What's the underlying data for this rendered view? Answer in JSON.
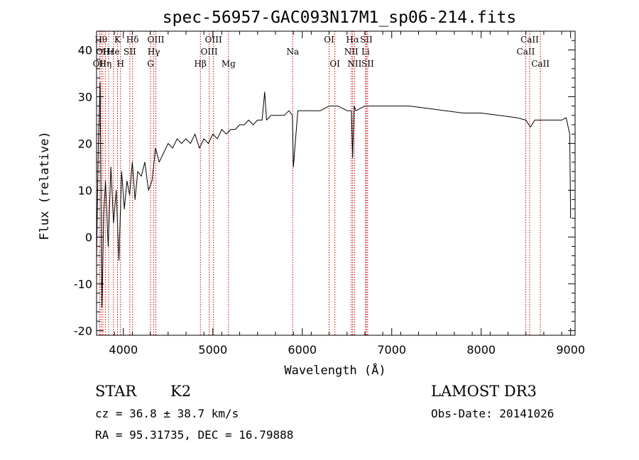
{
  "chart_data": {
    "type": "line",
    "title": "spec-56957-GAC093N17M1_sp06-214.fits",
    "xlabel": "Wavelength (Å)",
    "ylabel": "Flux (relative)",
    "xlim": [
      3700,
      9050
    ],
    "ylim": [
      -21,
      44
    ],
    "xticks": [
      4000,
      5000,
      6000,
      7000,
      8000,
      9000
    ],
    "yticks": [
      -20,
      -10,
      0,
      10,
      20,
      30,
      40
    ],
    "series": [
      {
        "name": "spectrum",
        "x": [
          3700,
          3720,
          3740,
          3760,
          3780,
          3800,
          3830,
          3860,
          3890,
          3920,
          3950,
          3980,
          4010,
          4040,
          4070,
          4100,
          4130,
          4160,
          4200,
          4240,
          4280,
          4320,
          4360,
          4400,
          4450,
          4500,
          4550,
          4600,
          4650,
          4700,
          4750,
          4800,
          4850,
          4900,
          4950,
          5000,
          5050,
          5100,
          5150,
          5200,
          5250,
          5300,
          5350,
          5400,
          5450,
          5500,
          5550,
          5580,
          5600,
          5650,
          5700,
          5750,
          5800,
          5850,
          5890,
          5900,
          5950,
          6000,
          6100,
          6200,
          6300,
          6400,
          6500,
          6550,
          6563,
          6580,
          6600,
          6700,
          6800,
          6900,
          7000,
          7200,
          7400,
          7600,
          7800,
          8000,
          8200,
          8400,
          8500,
          8550,
          8600,
          8700,
          8800,
          8900,
          8950,
          8990,
          9000
        ],
        "y": [
          -5,
          20,
          33,
          -15,
          5,
          12,
          -2,
          15,
          3,
          10,
          -5,
          14,
          6,
          12,
          9,
          16,
          8,
          14,
          13,
          16,
          10,
          12,
          19,
          16,
          18,
          20,
          19,
          21,
          20,
          21,
          20,
          22,
          19,
          21,
          20,
          22,
          21,
          23,
          22,
          23,
          23,
          24,
          24,
          25,
          24,
          25,
          25,
          31,
          25,
          26,
          26,
          26,
          26,
          27,
          26,
          15,
          27,
          27,
          27,
          27,
          28,
          28,
          27,
          27,
          17,
          28,
          27,
          28,
          28,
          28,
          28,
          28,
          27.5,
          27,
          26.5,
          26.5,
          26,
          25.5,
          25,
          23.5,
          25,
          25,
          25,
          25,
          25.5,
          22,
          4
        ]
      }
    ],
    "lines": [
      {
        "w": 3750,
        "label": "Hθ",
        "row": 0
      },
      {
        "w": 3770,
        "label": "OII",
        "row": 1
      },
      {
        "w": 3734,
        "label": "OII",
        "row": 2
      },
      {
        "w": 3798,
        "label": "Hη",
        "row": 2
      },
      {
        "w": 3835,
        "label": "Hε",
        "row": 1
      },
      {
        "w": 3889,
        "label": "He",
        "row": 1
      },
      {
        "w": 3934,
        "label": "K",
        "row": 0
      },
      {
        "w": 3968,
        "label": "H",
        "row": 2
      },
      {
        "w": 4072,
        "label": "SII",
        "row": 1
      },
      {
        "w": 4102,
        "label": "Hδ",
        "row": 0
      },
      {
        "w": 4304,
        "label": "G",
        "row": 2
      },
      {
        "w": 4340,
        "label": "Hγ",
        "row": 1
      },
      {
        "w": 4363,
        "label": "OIII",
        "row": 0
      },
      {
        "w": 4861,
        "label": "Hβ",
        "row": 2
      },
      {
        "w": 4959,
        "label": "OIII",
        "row": 1
      },
      {
        "w": 5007,
        "label": "OIII",
        "row": 0
      },
      {
        "w": 5175,
        "label": "Mg",
        "row": 2
      },
      {
        "w": 5893,
        "label": "Na",
        "row": 1
      },
      {
        "w": 6300,
        "label": "OI",
        "row": 0
      },
      {
        "w": 6364,
        "label": "OI",
        "row": 2
      },
      {
        "w": 6548,
        "label": "NII",
        "row": 1
      },
      {
        "w": 6563,
        "label": "Hα",
        "row": 0
      },
      {
        "w": 6584,
        "label": "NII",
        "row": 2
      },
      {
        "w": 6708,
        "label": "Li",
        "row": 1
      },
      {
        "w": 6716,
        "label": "SII",
        "row": 0
      },
      {
        "w": 6731,
        "label": "SII",
        "row": 2
      },
      {
        "w": 8498,
        "label": "CaII",
        "row": 1
      },
      {
        "w": 8542,
        "label": "CaII",
        "row": 0
      },
      {
        "w": 8662,
        "label": "CaII",
        "row": 2
      }
    ]
  },
  "info": {
    "class": "STAR",
    "subclass": "K2",
    "survey": "LAMOST DR3",
    "cz": "cz = 36.8 ± 38.7 km/s",
    "obs_date": "Obs-Date: 20141026",
    "radec": "RA =  95.31735, DEC =  16.79888"
  },
  "colors": {
    "line_marker": "#cc0000",
    "spectrum": "#000000",
    "axes": "#000000"
  }
}
